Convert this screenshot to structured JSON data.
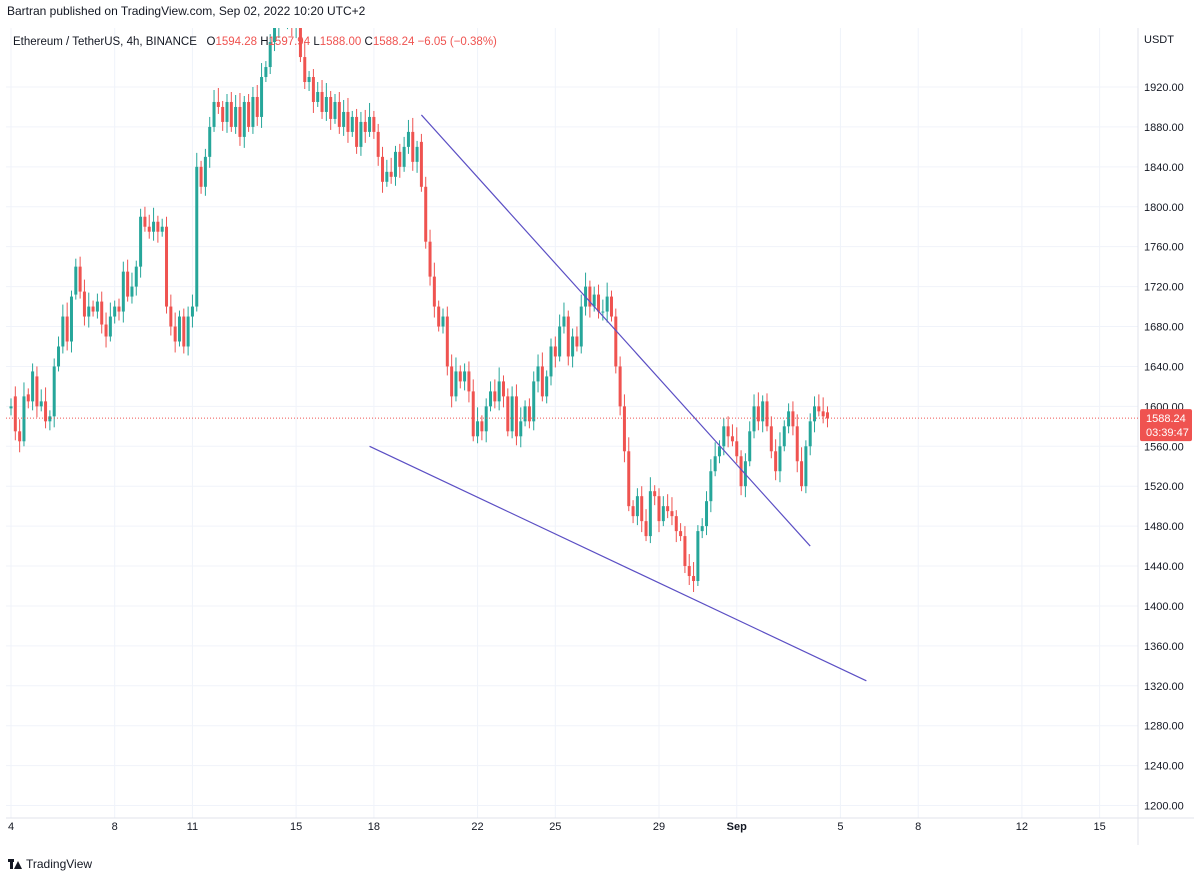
{
  "header": {
    "text": "Bartran published on TradingView.com, Sep 02, 2022 10:20 UTC+2"
  },
  "legend": {
    "symbol": "Ethereum / TetherUS, 4h, BINANCE",
    "o_label": "O",
    "o_value": "1594.28",
    "h_label": "H",
    "h_value": "1597.94",
    "l_label": "L",
    "l_value": "1588.00",
    "c_label": "C",
    "c_value": "1588.24",
    "change": "−6.05 (−0.38%)"
  },
  "footer": {
    "brand": "TradingView"
  },
  "colors": {
    "up": "#26a69a",
    "down": "#ef5350",
    "trendline": "#5b4fc4",
    "grid": "#f0f3fa",
    "text": "#131722"
  },
  "chart_data": {
    "type": "candlestick",
    "title": "Ethereum / TetherUS, 4h, BINANCE",
    "currency_label": "USDT",
    "ylim": [
      1190,
      1970
    ],
    "y_ticks": [
      1920,
      1880,
      1840,
      1800,
      1760,
      1720,
      1680,
      1640,
      1600,
      1560,
      1520,
      1480,
      1440,
      1400,
      1360,
      1320,
      1280,
      1240,
      1200
    ],
    "x_ticks": [
      {
        "label": "4",
        "bar": 1
      },
      {
        "label": "8",
        "bar": 25
      },
      {
        "label": "11",
        "bar": 43
      },
      {
        "label": "15",
        "bar": 67
      },
      {
        "label": "18",
        "bar": 85
      },
      {
        "label": "22",
        "bar": 109
      },
      {
        "label": "25",
        "bar": 127
      },
      {
        "label": "29",
        "bar": 151
      },
      {
        "label": "Sep",
        "bar": 169,
        "bold": true
      },
      {
        "label": "5",
        "bar": 193
      },
      {
        "label": "8",
        "bar": 211
      },
      {
        "label": "12",
        "bar": 235
      },
      {
        "label": "15",
        "bar": 253
      }
    ],
    "last_price": "1588.24",
    "countdown": "03:39:47",
    "trendlines": [
      {
        "from": {
          "bar": 96,
          "price": 1892
        },
        "to": {
          "bar": 186,
          "price": 1460
        }
      },
      {
        "from": {
          "bar": 84,
          "price": 1560
        },
        "to": {
          "bar": 199,
          "price": 1325
        }
      }
    ],
    "candles": [
      [
        1,
        1598,
        1600
      ],
      [
        2,
        1610,
        1575
      ],
      [
        3,
        1575,
        1565
      ],
      [
        4,
        1565,
        1610
      ],
      [
        5,
        1612,
        1605
      ],
      [
        6,
        1605,
        1635
      ],
      [
        7,
        1630,
        1600
      ],
      [
        8,
        1600,
        1605
      ],
      [
        9,
        1605,
        1585
      ],
      [
        10,
        1585,
        1590
      ],
      [
        11,
        1590,
        1640
      ],
      [
        12,
        1640,
        1660
      ],
      [
        13,
        1660,
        1690
      ],
      [
        14,
        1690,
        1665
      ],
      [
        15,
        1665,
        1710
      ],
      [
        16,
        1712,
        1740
      ],
      [
        17,
        1740,
        1715
      ],
      [
        18,
        1715,
        1690
      ],
      [
        19,
        1690,
        1700
      ],
      [
        20,
        1700,
        1695
      ],
      [
        21,
        1695,
        1705
      ],
      [
        22,
        1705,
        1682
      ],
      [
        23,
        1682,
        1670
      ],
      [
        24,
        1670,
        1690
      ],
      [
        25,
        1690,
        1700
      ],
      [
        26,
        1700,
        1695
      ],
      [
        27,
        1695,
        1735
      ],
      [
        28,
        1735,
        1710
      ],
      [
        29,
        1710,
        1720
      ],
      [
        30,
        1720,
        1740
      ],
      [
        31,
        1740,
        1790
      ],
      [
        32,
        1790,
        1780
      ],
      [
        33,
        1780,
        1775
      ],
      [
        34,
        1775,
        1785
      ],
      [
        35,
        1785,
        1775
      ],
      [
        36,
        1775,
        1780
      ],
      [
        37,
        1780,
        1700
      ],
      [
        38,
        1700,
        1680
      ],
      [
        39,
        1680,
        1665
      ],
      [
        40,
        1665,
        1690
      ],
      [
        41,
        1690,
        1660
      ],
      [
        42,
        1660,
        1690
      ],
      [
        43,
        1690,
        1700
      ],
      [
        44,
        1700,
        1840
      ],
      [
        45,
        1840,
        1820
      ],
      [
        46,
        1820,
        1850
      ],
      [
        47,
        1850,
        1880
      ],
      [
        48,
        1880,
        1905
      ],
      [
        49,
        1905,
        1900
      ],
      [
        50,
        1900,
        1885
      ],
      [
        51,
        1885,
        1905
      ],
      [
        52,
        1905,
        1880
      ],
      [
        53,
        1880,
        1900
      ],
      [
        54,
        1900,
        1870
      ],
      [
        55,
        1870,
        1905
      ],
      [
        56,
        1905,
        1880
      ],
      [
        57,
        1880,
        1910
      ],
      [
        58,
        1910,
        1890
      ],
      [
        59,
        1890,
        1930
      ],
      [
        60,
        1930,
        1940
      ],
      [
        61,
        1940,
        1965
      ],
      [
        62,
        1965,
        1980
      ],
      [
        63,
        1980,
        1995
      ],
      [
        64,
        1995,
        1985
      ],
      [
        65,
        1985,
        1998
      ],
      [
        66,
        1995,
        1980
      ],
      [
        67,
        1980,
        1990
      ],
      [
        68,
        1990,
        1950
      ],
      [
        69,
        1950,
        1925
      ],
      [
        70,
        1925,
        1930
      ],
      [
        71,
        1930,
        1905
      ],
      [
        72,
        1905,
        1915
      ],
      [
        73,
        1915,
        1895
      ],
      [
        74,
        1895,
        1910
      ],
      [
        75,
        1910,
        1888
      ],
      [
        76,
        1888,
        1905
      ],
      [
        77,
        1905,
        1880
      ],
      [
        78,
        1880,
        1895
      ],
      [
        79,
        1895,
        1875
      ],
      [
        80,
        1875,
        1890
      ],
      [
        81,
        1890,
        1860
      ],
      [
        82,
        1860,
        1885
      ],
      [
        83,
        1885,
        1875
      ],
      [
        84,
        1875,
        1890
      ],
      [
        85,
        1890,
        1875
      ],
      [
        86,
        1875,
        1850
      ],
      [
        87,
        1850,
        1825
      ],
      [
        88,
        1825,
        1835
      ],
      [
        89,
        1835,
        1830
      ],
      [
        90,
        1830,
        1855
      ],
      [
        91,
        1855,
        1840
      ],
      [
        92,
        1840,
        1860
      ],
      [
        93,
        1860,
        1875
      ],
      [
        94,
        1875,
        1845
      ],
      [
        95,
        1845,
        1860
      ],
      [
        96,
        1865,
        1820
      ],
      [
        97,
        1820,
        1765
      ],
      [
        98,
        1765,
        1730
      ],
      [
        99,
        1730,
        1700
      ],
      [
        100,
        1700,
        1680
      ],
      [
        101,
        1680,
        1690
      ],
      [
        102,
        1690,
        1640
      ],
      [
        103,
        1640,
        1610
      ],
      [
        104,
        1610,
        1635
      ],
      [
        105,
        1635,
        1625
      ],
      [
        106,
        1625,
        1635
      ],
      [
        107,
        1635,
        1615
      ],
      [
        108,
        1615,
        1570
      ],
      [
        109,
        1570,
        1585
      ],
      [
        110,
        1585,
        1575
      ],
      [
        111,
        1575,
        1600
      ],
      [
        112,
        1600,
        1615
      ],
      [
        113,
        1615,
        1605
      ],
      [
        114,
        1605,
        1625
      ],
      [
        115,
        1625,
        1610
      ],
      [
        116,
        1610,
        1575
      ],
      [
        117,
        1575,
        1610
      ],
      [
        118,
        1610,
        1570
      ],
      [
        119,
        1570,
        1585
      ],
      [
        120,
        1585,
        1600
      ],
      [
        121,
        1600,
        1585
      ],
      [
        122,
        1585,
        1625
      ],
      [
        123,
        1625,
        1640
      ],
      [
        124,
        1640,
        1610
      ],
      [
        125,
        1610,
        1630
      ],
      [
        126,
        1630,
        1660
      ],
      [
        127,
        1660,
        1650
      ],
      [
        128,
        1650,
        1680
      ],
      [
        129,
        1680,
        1690
      ],
      [
        130,
        1690,
        1650
      ],
      [
        131,
        1650,
        1670
      ],
      [
        132,
        1670,
        1660
      ],
      [
        133,
        1660,
        1700
      ],
      [
        134,
        1700,
        1720
      ],
      [
        135,
        1720,
        1700
      ],
      [
        136,
        1700,
        1712
      ],
      [
        137,
        1712,
        1695
      ],
      [
        138,
        1695,
        1695
      ],
      [
        139,
        1695,
        1710
      ],
      [
        140,
        1710,
        1690
      ],
      [
        141,
        1690,
        1640
      ],
      [
        142,
        1640,
        1600
      ],
      [
        143,
        1600,
        1555
      ],
      [
        144,
        1555,
        1500
      ],
      [
        145,
        1500,
        1490
      ],
      [
        146,
        1490,
        1510
      ],
      [
        147,
        1510,
        1485
      ],
      [
        148,
        1485,
        1470
      ],
      [
        149,
        1470,
        1515
      ],
      [
        150,
        1515,
        1510
      ],
      [
        151,
        1510,
        1485
      ],
      [
        152,
        1485,
        1500
      ],
      [
        153,
        1500,
        1495
      ],
      [
        154,
        1495,
        1490
      ],
      [
        155,
        1490,
        1475
      ],
      [
        156,
        1475,
        1470
      ],
      [
        157,
        1470,
        1440
      ],
      [
        158,
        1440,
        1430
      ],
      [
        159,
        1430,
        1425
      ],
      [
        160,
        1425,
        1475
      ],
      [
        161,
        1475,
        1480
      ],
      [
        162,
        1480,
        1505
      ],
      [
        163,
        1505,
        1535
      ],
      [
        164,
        1535,
        1550
      ],
      [
        165,
        1550,
        1560
      ],
      [
        166,
        1560,
        1580
      ],
      [
        167,
        1580,
        1570
      ],
      [
        168,
        1570,
        1565
      ],
      [
        169,
        1565,
        1550
      ],
      [
        170,
        1550,
        1520
      ],
      [
        171,
        1520,
        1545
      ],
      [
        172,
        1545,
        1575
      ],
      [
        173,
        1575,
        1600
      ],
      [
        174,
        1600,
        1585
      ],
      [
        175,
        1585,
        1605
      ],
      [
        176,
        1605,
        1580
      ],
      [
        177,
        1580,
        1555
      ],
      [
        178,
        1555,
        1535
      ],
      [
        179,
        1535,
        1560
      ],
      [
        180,
        1560,
        1580
      ],
      [
        181,
        1580,
        1595
      ],
      [
        182,
        1595,
        1580
      ],
      [
        183,
        1580,
        1545
      ],
      [
        184,
        1545,
        1520
      ],
      [
        185,
        1520,
        1560
      ],
      [
        186,
        1560,
        1585
      ],
      [
        187,
        1585,
        1600
      ],
      [
        188,
        1600,
        1595
      ],
      [
        189,
        1595,
        1590
      ],
      [
        190,
        1594,
        1588
      ]
    ]
  }
}
